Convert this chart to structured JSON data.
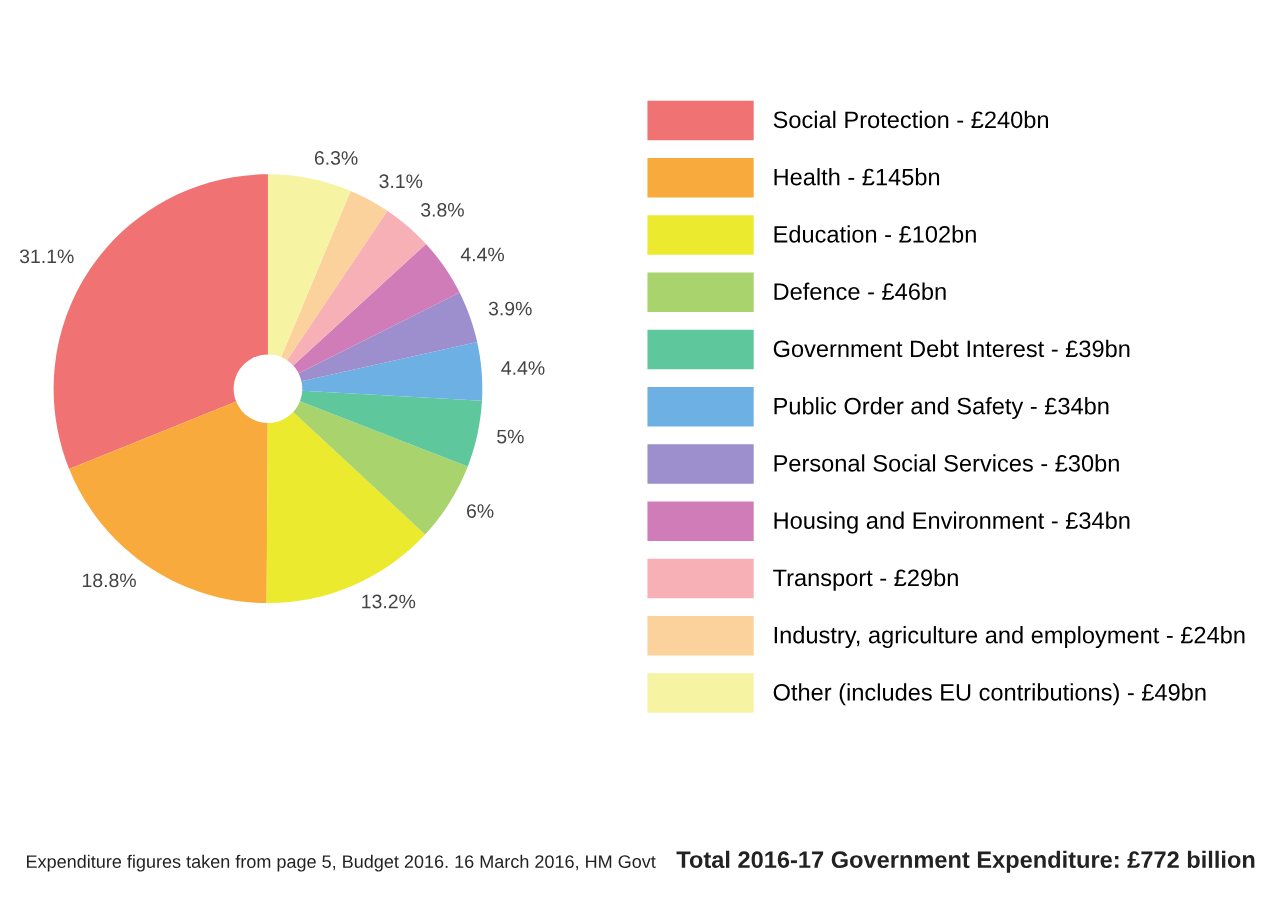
{
  "chart_data": {
    "type": "donut",
    "categories": [
      "Social Protection - £240bn",
      "Health - £145bn",
      "Education - £102bn",
      "Defence - £46bn",
      "Government Debt Interest - £39bn",
      "Public Order and Safety - £34bn",
      "Personal Social Services - £30bn",
      "Housing and Environment - £34bn",
      "Transport - £29bn",
      "Industry, agriculture and employment - £24bn",
      "Other (includes EU contributions) - £49bn"
    ],
    "values": [
      31.1,
      18.8,
      13.2,
      6,
      5,
      4.4,
      3.9,
      4.4,
      3.8,
      3.1,
      6.3
    ],
    "value_labels": [
      "31.1%",
      "18.8%",
      "13.2%",
      "6%",
      "5%",
      "4.4%",
      "3.9%",
      "4.4%",
      "3.8%",
      "3.1%",
      "6.3%"
    ],
    "colors": [
      "#f07272",
      "#f9aa3c",
      "#ecea2e",
      "#a9d36c",
      "#5ec89c",
      "#6cb0e4",
      "#9d8ecd",
      "#d07cb9",
      "#f6b0b6",
      "#fbd29c",
      "#f6f3a2"
    ],
    "legend": "right",
    "annotations": [
      "Expenditure figures taken from page 5, Budget 2016. 16 March 2016, HM Govt",
      "Total 2016-17 Government Expenditure: £772 billion"
    ]
  }
}
